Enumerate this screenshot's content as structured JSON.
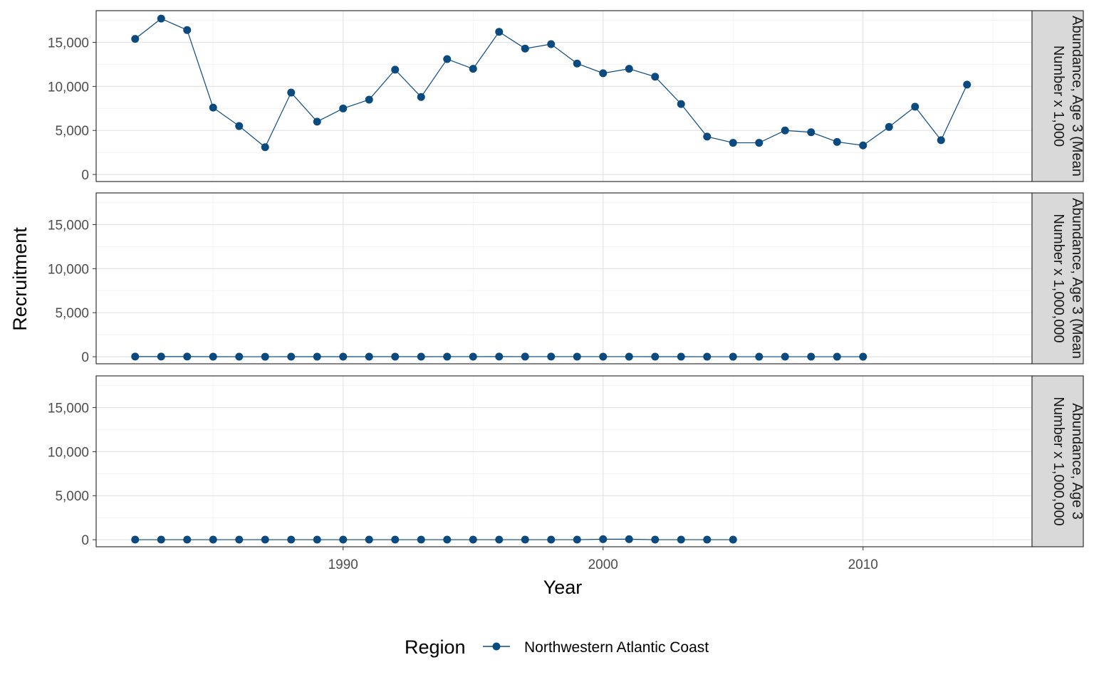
{
  "chart_data": {
    "type": "line",
    "xlabel": "Year",
    "ylabel": "Recruitment",
    "xlim": [
      1980.5,
      2016.5
    ],
    "ylim": [
      -800,
      18600
    ],
    "x_ticks": [
      1990,
      2000,
      2010
    ],
    "x_tick_labels": [
      "1990",
      "2000",
      "2010"
    ],
    "y_ticks": [
      0,
      5000,
      10000,
      15000
    ],
    "y_tick_labels": [
      "0",
      "5,000",
      "10,000",
      "15,000"
    ],
    "grid": true,
    "legend": {
      "title": "Region",
      "position": "bottom",
      "entries": [
        "Northwestern Atlantic Coast"
      ]
    },
    "series_color": "#0a4a7f",
    "panels": [
      {
        "strip_lines": [
          "Abundance, Age 3 (Mean",
          "Number x 1,000"
        ],
        "x": [
          1982,
          1983,
          1984,
          1985,
          1986,
          1987,
          1988,
          1989,
          1990,
          1991,
          1992,
          1993,
          1994,
          1995,
          1996,
          1997,
          1998,
          1999,
          2000,
          2001,
          2002,
          2003,
          2004,
          2005,
          2006,
          2007,
          2008,
          2009,
          2010,
          2011,
          2012,
          2013,
          2014
        ],
        "values": [
          15400,
          17700,
          16400,
          7600,
          5500,
          3100,
          9300,
          6000,
          7500,
          8500,
          11900,
          8800,
          13100,
          12000,
          16200,
          14300,
          14800,
          12600,
          11500,
          12000,
          11100,
          8000,
          4300,
          3600,
          3600,
          5000,
          4800,
          3700,
          3300,
          5400,
          7700,
          3900,
          10200
        ]
      },
      {
        "strip_lines": [
          "Abundance, Age 3 (Mean",
          "Number x 1,000,000"
        ],
        "x": [
          1982,
          1983,
          1984,
          1985,
          1986,
          1987,
          1988,
          1989,
          1990,
          1991,
          1992,
          1993,
          1994,
          1995,
          1996,
          1997,
          1998,
          1999,
          2000,
          2001,
          2002,
          2003,
          2004,
          2005,
          2006,
          2007,
          2008,
          2009,
          2010
        ],
        "values": [
          15.4,
          17.7,
          16.4,
          7.6,
          5.5,
          3.1,
          9.3,
          6.0,
          7.5,
          8.5,
          11.9,
          8.8,
          13.1,
          12.0,
          16.2,
          14.3,
          14.8,
          12.6,
          11.5,
          12.0,
          11.1,
          8.0,
          4.3,
          3.6,
          3.6,
          5.0,
          4.8,
          3.7,
          3.3
        ]
      },
      {
        "strip_lines": [
          "Abundance, Age 3",
          "Number x 1,000,000"
        ],
        "x": [
          1982,
          1983,
          1984,
          1985,
          1986,
          1987,
          1988,
          1989,
          1990,
          1991,
          1992,
          1993,
          1994,
          1995,
          1996,
          1997,
          1998,
          1999,
          2000,
          2001,
          2002,
          2003,
          2004,
          2005
        ],
        "values": [
          5,
          5,
          5,
          5,
          5,
          5,
          5,
          5,
          5,
          5,
          5,
          5,
          5,
          5,
          5,
          5,
          5,
          5,
          60,
          60,
          5,
          5,
          5,
          5
        ]
      }
    ]
  }
}
